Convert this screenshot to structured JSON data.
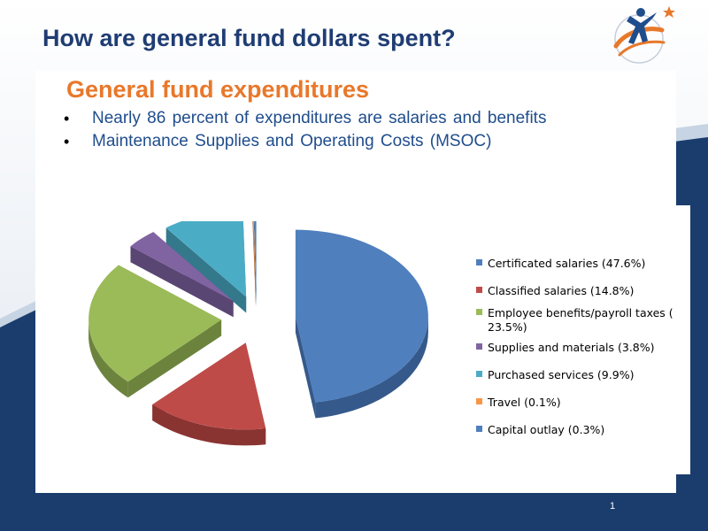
{
  "slide": {
    "title": "How are general fund dollars spent?",
    "heading": "General fund expenditures",
    "bullets": [
      "Nearly 86 percent of expenditures  are salaries and benefits",
      "Maintenance  Supplies  and  Operating  Costs (MSOC)"
    ],
    "page_number": "1",
    "colors": {
      "navy": "#1a3d6e",
      "title": "#1f3d73",
      "heading": "#e8782a",
      "bullet_text": "#1f4d8c"
    }
  },
  "chart_data": {
    "type": "pie",
    "exploded": true,
    "three_d": true,
    "legend_position": "right",
    "slices": [
      {
        "label": "Certificated salaries (47.6%)",
        "value": 47.6,
        "color": "#4f7fbd",
        "side": "#35598a"
      },
      {
        "label": "Classified salaries (14.8%)",
        "value": 14.8,
        "color": "#bf4b48",
        "side": "#8a3432"
      },
      {
        "label": "Employee benefits/payroll taxes ( 23.5%)",
        "value": 23.5,
        "color": "#9bbb59",
        "side": "#6c833e"
      },
      {
        "label": "Supplies and materials (3.8%)",
        "value": 3.8,
        "color": "#8064a2",
        "side": "#594672"
      },
      {
        "label": "Purchased services (9.9%)",
        "value": 9.9,
        "color": "#4bacc6",
        "side": "#34798b"
      },
      {
        "label": "Travel (0.1%)",
        "value": 0.1,
        "color": "#f79646",
        "side": "#b06a30"
      },
      {
        "label": "Capital outlay (0.3%)",
        "value": 0.3,
        "color": "#4f7fbd",
        "side": "#35598a"
      }
    ]
  }
}
